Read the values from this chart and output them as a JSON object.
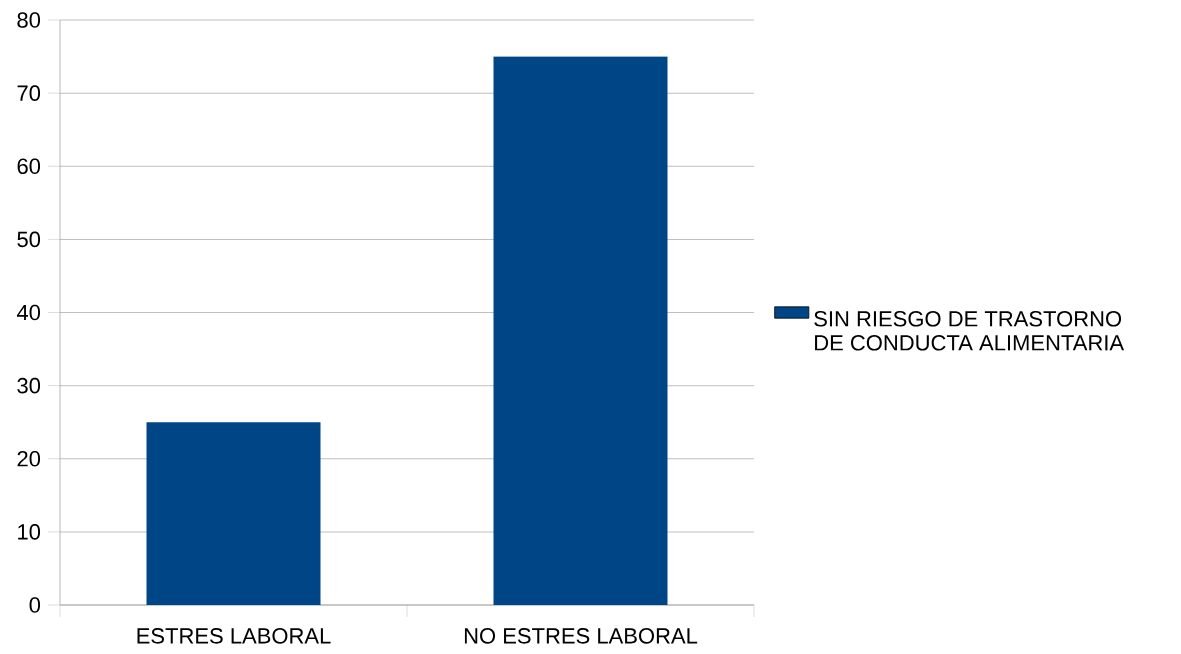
{
  "chart_data": {
    "type": "bar",
    "categories": [
      "ESTRES LABORAL",
      "NO ESTRES LABORAL"
    ],
    "series": [
      {
        "name": "SIN RIESGO DE TRASTORNO DE CONDUCTA ALIMENTARIA",
        "color": "#004586",
        "values": [
          25,
          75
        ]
      }
    ],
    "ylim": [
      0,
      80
    ],
    "yticks": [
      0,
      10,
      20,
      30,
      40,
      50,
      60,
      70,
      80
    ],
    "grid": "y",
    "legend": "right"
  }
}
